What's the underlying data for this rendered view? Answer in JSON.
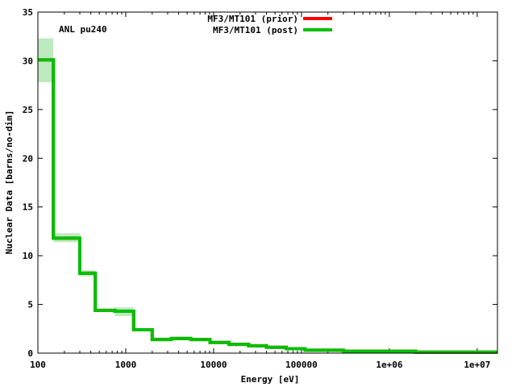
{
  "chart_data": {
    "type": "line",
    "step": true,
    "xscale": "log",
    "xlim": [
      100,
      17000000
    ],
    "ylim": [
      0,
      35
    ],
    "xlabel": "Energy [eV]",
    "ylabel": "Nuclear Data [barns/no-dim]",
    "annotation": "ANL pu240",
    "x_tick_labels": [
      "100",
      "1000",
      "10000",
      "100000",
      "1e+06",
      "1e+07"
    ],
    "x_ticks": [
      100,
      1000,
      10000,
      100000,
      1000000,
      10000000
    ],
    "y_ticks": [
      0,
      5,
      10,
      15,
      20,
      25,
      30,
      35
    ],
    "y_tick_labels": [
      "0",
      "5",
      "10",
      "15",
      "20",
      "25",
      "30",
      "35"
    ],
    "legend_position": "top-center",
    "series": [
      {
        "name": "MF3/MT101 (prior)",
        "color": "#ff0000",
        "edges": [
          100,
          150,
          300,
          450,
          750,
          1230,
          2000,
          3300,
          5500,
          9100,
          15000,
          25000,
          40000,
          67000,
          110000,
          300000,
          2000000,
          17000000
        ],
        "values": [
          30.1,
          11.8,
          8.2,
          4.4,
          4.3,
          2.4,
          1.4,
          1.5,
          1.4,
          1.1,
          0.9,
          0.75,
          0.6,
          0.45,
          0.3,
          0.2,
          0.1
        ]
      },
      {
        "name": "MF3/MT101 (post)",
        "color": "#00c000",
        "edges": [
          100,
          150,
          300,
          450,
          750,
          1230,
          2000,
          3300,
          5500,
          9100,
          15000,
          25000,
          40000,
          67000,
          110000,
          300000,
          2000000,
          17000000
        ],
        "values": [
          30.1,
          11.8,
          8.2,
          4.4,
          4.3,
          2.4,
          1.4,
          1.5,
          1.4,
          1.1,
          0.9,
          0.75,
          0.6,
          0.45,
          0.3,
          0.2,
          0.1
        ]
      }
    ],
    "uncertainty_band": {
      "color": "#bfe9bf",
      "low": [
        27.8,
        11.4,
        7.9,
        4.25,
        3.8,
        2.3,
        1.25,
        1.35,
        1.35,
        1.05,
        0.87,
        0.72,
        0.58,
        0.43,
        0.28,
        0.19,
        0.09
      ],
      "high": [
        32.3,
        12.3,
        8.5,
        4.55,
        4.7,
        2.5,
        1.6,
        1.7,
        1.5,
        1.15,
        0.95,
        0.8,
        0.64,
        0.48,
        0.33,
        0.22,
        0.12
      ]
    }
  }
}
